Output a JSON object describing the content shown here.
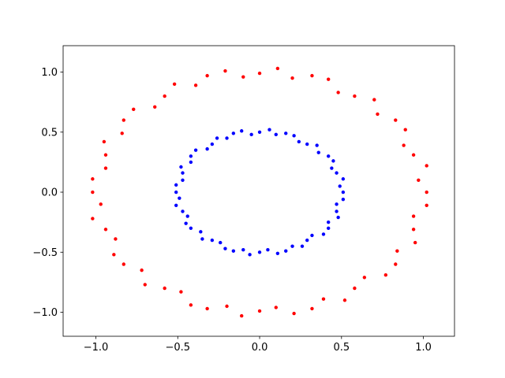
{
  "chart_data": {
    "type": "scatter",
    "xlim": [
      -1.2,
      1.19
    ],
    "ylim": [
      -1.2,
      1.22
    ],
    "xticks": [
      {
        "value": -1.0,
        "label": "−1.0"
      },
      {
        "value": -0.5,
        "label": "−0.5"
      },
      {
        "value": 0,
        "label": "0.0"
      },
      0.5,
      {
        "value": 1.0,
        "label": "1.0"
      }
    ],
    "yticks": [
      {
        "value": -1.0,
        "label": "−1.0"
      },
      {
        "value": -0.5,
        "label": "−0.5"
      },
      {
        "value": 0,
        "label": "0.0"
      },
      0.5,
      {
        "value": 1.0,
        "label": "1.0"
      }
    ],
    "series": [
      {
        "color": "#ff0000",
        "x": [
          1.02,
          0.97,
          1.02,
          0.94,
          0.88,
          0.89,
          0.83,
          0.72,
          0.7,
          0.58,
          0.48,
          0.42,
          0.32,
          0.2,
          0.11,
          0.0,
          -0.1,
          -0.21,
          -0.32,
          -0.39,
          -0.52,
          -0.58,
          -0.64,
          -0.77,
          -0.83,
          -0.84,
          -0.95,
          -0.94,
          -0.94,
          -1.02,
          -1.02,
          -0.97,
          -1.02,
          -0.94,
          -0.88,
          -0.89,
          -0.83,
          -0.72,
          -0.7,
          -0.58,
          -0.48,
          -0.42,
          -0.32,
          -0.2,
          -0.11,
          0.0,
          0.1,
          0.21,
          0.32,
          0.39,
          0.52,
          0.58,
          0.64,
          0.77,
          0.83,
          0.84,
          0.95,
          0.94,
          0.94,
          1.02
        ],
        "values": [
          0.0,
          0.1,
          0.22,
          0.31,
          0.39,
          0.52,
          0.6,
          0.65,
          0.77,
          0.8,
          0.83,
          0.94,
          0.97,
          0.95,
          1.03,
          0.99,
          0.96,
          1.01,
          0.97,
          0.89,
          0.9,
          0.8,
          0.71,
          0.69,
          0.6,
          0.49,
          0.42,
          0.31,
          0.2,
          0.11,
          0.0,
          -0.1,
          -0.22,
          -0.31,
          -0.39,
          -0.52,
          -0.6,
          -0.65,
          -0.77,
          -0.8,
          -0.83,
          -0.94,
          -0.97,
          -0.95,
          -1.03,
          -0.99,
          -0.96,
          -1.01,
          -0.97,
          -0.89,
          -0.9,
          -0.8,
          -0.71,
          -0.69,
          -0.6,
          -0.49,
          -0.42,
          -0.31,
          -0.2,
          -0.11
        ]
      },
      {
        "color": "#0000ff",
        "x": [
          0.51,
          0.49,
          0.51,
          0.47,
          0.44,
          0.45,
          0.42,
          0.36,
          0.35,
          0.29,
          0.24,
          0.21,
          0.16,
          0.1,
          0.06,
          0.0,
          -0.05,
          -0.11,
          -0.16,
          -0.2,
          -0.26,
          -0.29,
          -0.32,
          -0.39,
          -0.42,
          -0.42,
          -0.48,
          -0.47,
          -0.47,
          -0.51,
          -0.51,
          -0.49,
          -0.51,
          -0.47,
          -0.44,
          -0.45,
          -0.42,
          -0.36,
          -0.35,
          -0.29,
          -0.24,
          -0.21,
          -0.16,
          -0.1,
          -0.06,
          0.0,
          0.05,
          0.11,
          0.16,
          0.2,
          0.26,
          0.29,
          0.32,
          0.39,
          0.42,
          0.42,
          0.48,
          0.47,
          0.47,
          0.51
        ],
        "values": [
          0.0,
          0.05,
          0.11,
          0.16,
          0.2,
          0.26,
          0.3,
          0.33,
          0.39,
          0.4,
          0.42,
          0.47,
          0.49,
          0.48,
          0.52,
          0.5,
          0.48,
          0.51,
          0.49,
          0.45,
          0.45,
          0.4,
          0.36,
          0.35,
          0.3,
          0.25,
          0.21,
          0.16,
          0.1,
          0.06,
          0.0,
          -0.05,
          -0.11,
          -0.16,
          -0.2,
          -0.26,
          -0.3,
          -0.33,
          -0.39,
          -0.4,
          -0.42,
          -0.47,
          -0.49,
          -0.48,
          -0.52,
          -0.5,
          -0.48,
          -0.51,
          -0.49,
          -0.45,
          -0.45,
          -0.4,
          -0.36,
          -0.35,
          -0.3,
          -0.25,
          -0.21,
          -0.16,
          -0.1,
          -0.06
        ]
      }
    ]
  }
}
